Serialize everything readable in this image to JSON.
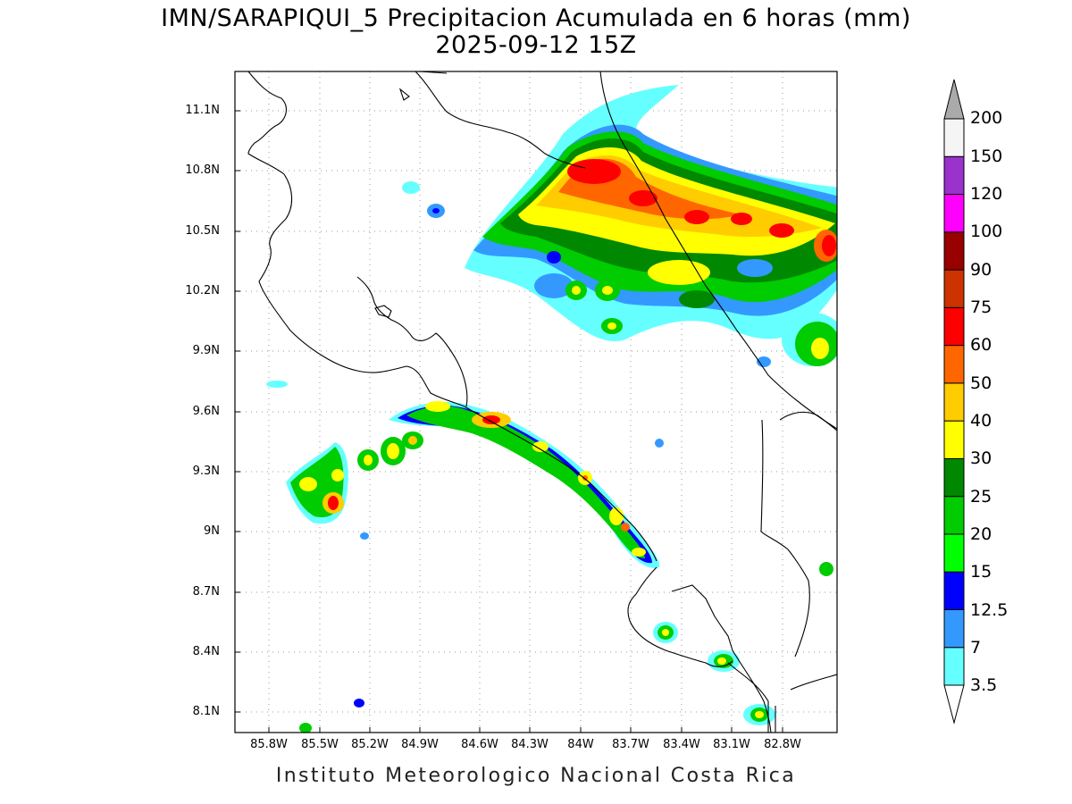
{
  "title": "IMN/SARAPIQUI_5 Precipitacion Acumulada en 6 horas (mm)",
  "subtitle": "2025-09-12 15Z",
  "footer": "Instituto Meteorologico Nacional Costa Rica",
  "latitude_ticks": [
    "11.1N",
    "10.8N",
    "10.5N",
    "10.2N",
    "9.9N",
    "9.6N",
    "9.3N",
    "9N",
    "8.7N",
    "8.4N",
    "8.1N"
  ],
  "longitude_ticks": [
    "85.8W",
    "85.5W",
    "85.2W",
    "84.9W",
    "84.6W",
    "84.3W",
    "84W",
    "83.7W",
    "83.4W",
    "83.1W",
    "82.8W"
  ],
  "colorbar": {
    "levels": [
      "3.5",
      "7",
      "12.5",
      "15",
      "20",
      "25",
      "30",
      "40",
      "50",
      "60",
      "75",
      "90",
      "100",
      "120",
      "150",
      "200"
    ],
    "colors": [
      "#66ffff",
      "#3399ff",
      "#0000ff",
      "#00ff00",
      "#00cc00",
      "#008800",
      "#ffff00",
      "#ffcc00",
      "#ff6600",
      "#ff0000",
      "#cc3300",
      "#990000",
      "#ff00ff",
      "#9933cc",
      "#f5f5f5",
      "#aaaaaa"
    ]
  }
}
